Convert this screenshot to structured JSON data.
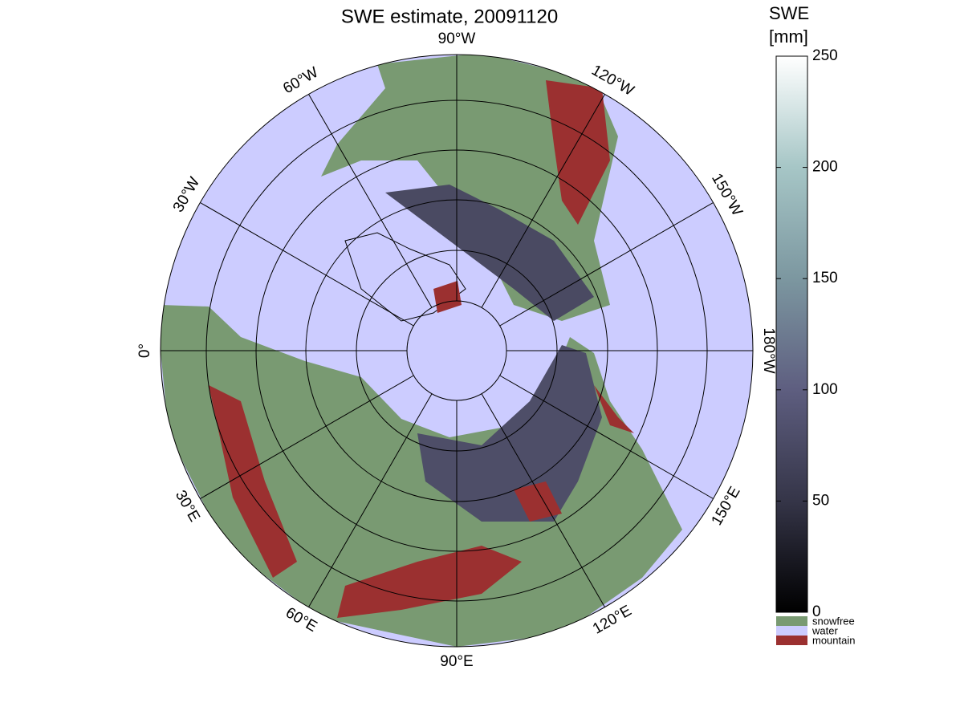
{
  "title": "SWE estimate, 20091120",
  "colorbar": {
    "label": [
      "SWE",
      "[mm]"
    ],
    "lim": [
      0,
      250
    ],
    "ticks": [
      0,
      50,
      100,
      150,
      200,
      250
    ]
  },
  "legend": [
    {
      "name": "snowfree",
      "color": "#799a72"
    },
    {
      "name": "water",
      "color": "#ccccff"
    },
    {
      "name": "mountain",
      "color": "#9b3030"
    }
  ],
  "longitude_labels": [
    "90°W",
    "120°W",
    "150°W",
    "180°W",
    "150°E",
    "120°E",
    "90°E",
    "60°E",
    "30°E",
    "0°",
    "30°W",
    "60°W"
  ]
}
